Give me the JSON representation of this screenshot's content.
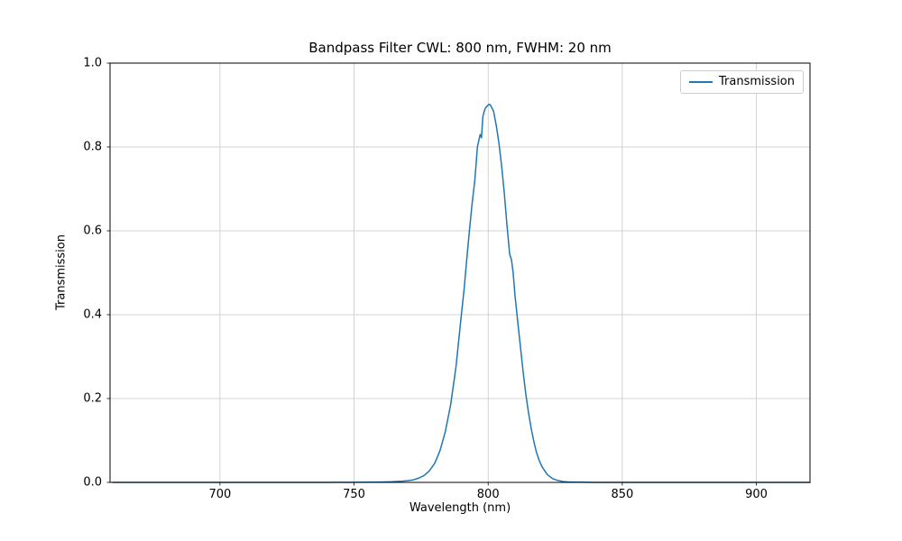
{
  "colors": {
    "line": "#1f77b4",
    "grid": "#c8c8c8",
    "spine": "#000000",
    "background": "#ffffff",
    "legend_border": "#cccccc"
  },
  "chart_data": {
    "type": "line",
    "title": "Bandpass Filter CWL: 800 nm, FWHM: 20 nm",
    "xlabel": "Wavelength (nm)",
    "ylabel": "Transmission",
    "xlim": [
      659,
      920
    ],
    "ylim": [
      0,
      1
    ],
    "xticks": [
      700,
      750,
      800,
      850,
      900
    ],
    "yticks": [
      0.0,
      0.2,
      0.4,
      0.6,
      0.8,
      1.0
    ],
    "grid": true,
    "legend_position": "upper right",
    "cwl_nm": 800,
    "fwhm_nm": 20,
    "peak_transmission": 0.9,
    "series": [
      {
        "name": "Transmission",
        "color": "#1f77b4",
        "points": [
          [
            660,
            0
          ],
          [
            680,
            0
          ],
          [
            700,
            0
          ],
          [
            720,
            0
          ],
          [
            740,
            0
          ],
          [
            750,
            0.0002
          ],
          [
            755,
            0.0004
          ],
          [
            760,
            0.0008
          ],
          [
            764,
            0.0015
          ],
          [
            768,
            0.003
          ],
          [
            770,
            0.004
          ],
          [
            772,
            0.006
          ],
          [
            774,
            0.01
          ],
          [
            776,
            0.016
          ],
          [
            778,
            0.027
          ],
          [
            780,
            0.045
          ],
          [
            782,
            0.075
          ],
          [
            784,
            0.12
          ],
          [
            786,
            0.185
          ],
          [
            788,
            0.275
          ],
          [
            790,
            0.4
          ],
          [
            791,
            0.46
          ],
          [
            792,
            0.53
          ],
          [
            793,
            0.6
          ],
          [
            794,
            0.665
          ],
          [
            795,
            0.72
          ],
          [
            796,
            0.8
          ],
          [
            796.5,
            0.815
          ],
          [
            797,
            0.83
          ],
          [
            797.5,
            0.822
          ],
          [
            798,
            0.872
          ],
          [
            798.5,
            0.885
          ],
          [
            799,
            0.893
          ],
          [
            800,
            0.9
          ],
          [
            800.5,
            0.902
          ],
          [
            801,
            0.898
          ],
          [
            802,
            0.885
          ],
          [
            803,
            0.852
          ],
          [
            804,
            0.81
          ],
          [
            805,
            0.755
          ],
          [
            806,
            0.69
          ],
          [
            807,
            0.615
          ],
          [
            808,
            0.545
          ],
          [
            808.7,
            0.53
          ],
          [
            809.3,
            0.5
          ],
          [
            810,
            0.445
          ],
          [
            811,
            0.385
          ],
          [
            812,
            0.325
          ],
          [
            813,
            0.265
          ],
          [
            814,
            0.213
          ],
          [
            815,
            0.168
          ],
          [
            816,
            0.13
          ],
          [
            817,
            0.098
          ],
          [
            818,
            0.072
          ],
          [
            819,
            0.053
          ],
          [
            820,
            0.038
          ],
          [
            822,
            0.019
          ],
          [
            824,
            0.009
          ],
          [
            826,
            0.0045
          ],
          [
            828,
            0.002
          ],
          [
            830,
            0.001
          ],
          [
            834,
            0.0004
          ],
          [
            840,
            0.0001
          ],
          [
            850,
            0
          ],
          [
            860,
            0
          ],
          [
            880,
            0
          ],
          [
            900,
            0
          ],
          [
            920,
            0
          ]
        ]
      }
    ]
  }
}
